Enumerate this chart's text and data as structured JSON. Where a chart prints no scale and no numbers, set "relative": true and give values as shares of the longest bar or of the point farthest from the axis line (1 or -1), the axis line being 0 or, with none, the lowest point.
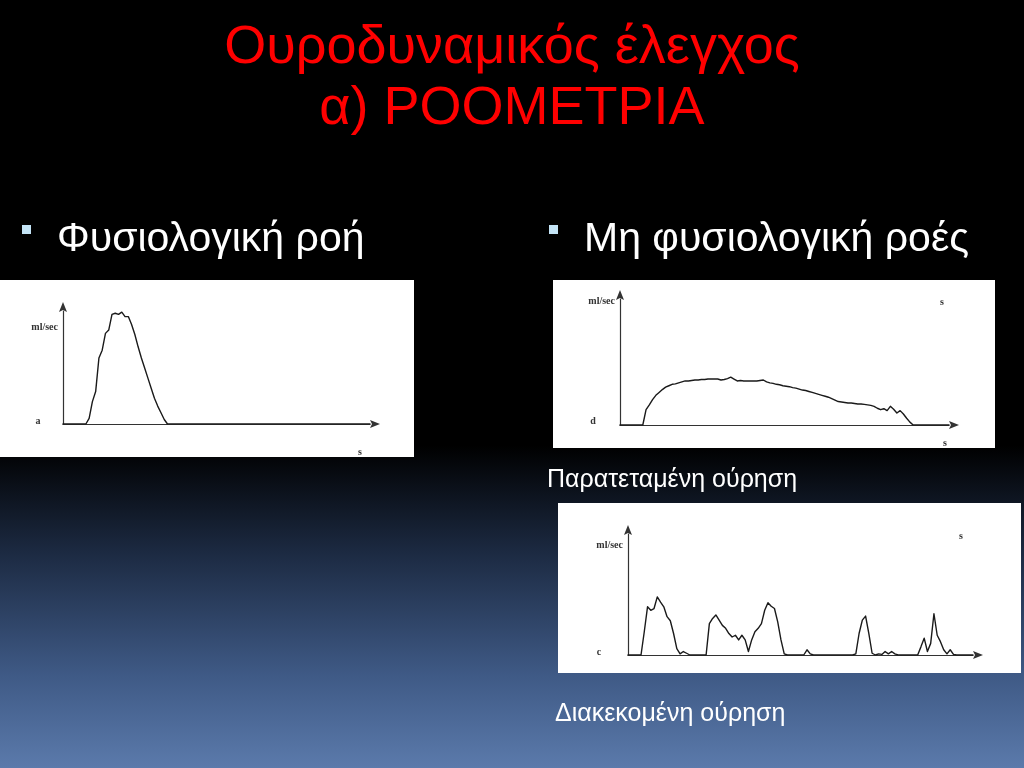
{
  "chart_data": [
    {
      "type": "line",
      "title": "Ουροδυναμικός έλεγχος α) ΡΟΟΜΕΤΡΙΑ",
      "subtitle": "Φυσιολογική ροή",
      "ylabel": "ml/sec",
      "xlabel": "s",
      "annotations": [
        "a"
      ],
      "relative": true,
      "marker": "none",
      "color": "#1a1a1a",
      "categories": [
        null,
        null,
        null,
        null,
        null,
        null,
        null,
        null,
        null,
        null,
        null,
        null,
        null,
        null,
        null,
        null,
        null,
        null,
        null,
        null,
        null,
        null,
        null,
        null,
        null,
        null,
        null,
        null,
        null,
        null,
        null,
        null,
        null,
        null,
        null,
        null,
        null,
        null,
        null,
        null,
        null,
        null,
        null,
        null,
        null,
        null,
        null,
        null,
        null,
        null,
        null,
        null,
        null,
        null,
        null,
        null,
        null,
        null,
        null,
        null,
        null,
        null,
        null,
        null,
        null,
        null,
        null,
        null,
        null,
        null,
        null,
        null,
        null,
        null,
        null,
        null,
        null,
        null,
        null,
        null,
        null,
        null,
        null,
        null,
        null,
        null,
        null,
        null,
        null,
        null,
        null,
        null,
        null,
        null,
        null
      ],
      "values": [
        0,
        0,
        0,
        0,
        0,
        0,
        0,
        0,
        0.05,
        0.2,
        0.29,
        0.59,
        0.66,
        0.81,
        0.84,
        0.98,
        0.99,
        0.98,
        1,
        0.96,
        0.96,
        0.89,
        0.8,
        0.69,
        0.59,
        0.5,
        0.41,
        0.32,
        0.23,
        0.16,
        0.1,
        0.04,
        0,
        0,
        0,
        0,
        0,
        0,
        0,
        0,
        0,
        0,
        0,
        0,
        0,
        0,
        0,
        0,
        0,
        0,
        0,
        0,
        0,
        0,
        0,
        0,
        0,
        0,
        0,
        0,
        0,
        0,
        0,
        0,
        0,
        0,
        0,
        0,
        0,
        0,
        0,
        0,
        0,
        0,
        0,
        0,
        0,
        0,
        0,
        0,
        0,
        0,
        0,
        0,
        0,
        0,
        0,
        0,
        0,
        0,
        0,
        0,
        0,
        0,
        0
      ]
    },
    {
      "type": "line",
      "title": "Μη φυσιολογική ροές",
      "subtitle": "Παρατεταμένη ούρηση",
      "ylabel": "ml/sec",
      "xlabel": "s",
      "annotations": [
        "d",
        "s"
      ],
      "relative": true,
      "marker": "none",
      "color": "#1a1a1a",
      "categories": [
        null,
        null,
        null,
        null,
        null,
        null,
        null,
        null,
        null,
        null,
        null,
        null,
        null,
        null,
        null,
        null,
        null,
        null,
        null,
        null,
        null,
        null,
        null,
        null,
        null,
        null,
        null,
        null,
        null,
        null,
        null,
        null,
        null,
        null,
        null,
        null,
        null,
        null,
        null,
        null,
        null,
        null,
        null,
        null,
        null,
        null,
        null,
        null,
        null,
        null,
        null,
        null,
        null,
        null,
        null,
        null,
        null,
        null,
        null,
        null,
        null,
        null,
        null,
        null,
        null,
        null,
        null,
        null,
        null,
        null,
        null,
        null,
        null,
        null,
        null,
        null,
        null,
        null,
        null,
        null,
        null,
        null,
        null,
        null,
        null,
        null,
        null,
        null,
        null,
        null,
        null,
        null,
        null,
        null,
        null,
        null,
        null,
        null,
        null,
        null,
        null,
        null
      ],
      "values": [
        0,
        0,
        0,
        0,
        0,
        0,
        0,
        0,
        0.32,
        0.42,
        0.53,
        0.62,
        0.68,
        0.74,
        0.79,
        0.82,
        0.85,
        0.86,
        0.88,
        0.9,
        0.92,
        0.92,
        0.93,
        0.94,
        0.94,
        0.95,
        0.95,
        0.96,
        0.96,
        0.96,
        0.96,
        0.94,
        0.95,
        0.97,
        1,
        0.96,
        0.92,
        0.93,
        0.92,
        0.92,
        0.92,
        0.92,
        0.92,
        0.93,
        0.94,
        0.9,
        0.88,
        0.87,
        0.85,
        0.84,
        0.82,
        0.81,
        0.8,
        0.78,
        0.77,
        0.75,
        0.73,
        0.72,
        0.7,
        0.68,
        0.66,
        0.64,
        0.62,
        0.6,
        0.58,
        0.55,
        0.52,
        0.49,
        0.48,
        0.47,
        0.46,
        0.46,
        0.45,
        0.44,
        0.44,
        0.43,
        0.42,
        0.41,
        0.39,
        0.35,
        0.32,
        0.34,
        0.3,
        0.39,
        0.33,
        0.25,
        0.3,
        0.23,
        0.14,
        0.06,
        0,
        0,
        0,
        0,
        0,
        0,
        0,
        0,
        0,
        0,
        0,
        0
      ]
    },
    {
      "type": "line",
      "subtitle": "Διακεκομένη ούρηση",
      "ylabel": "ml/sec",
      "annotations": [
        "c",
        "s"
      ],
      "relative": true,
      "marker": "none",
      "color": "#1a1a1a",
      "categories": [
        null,
        null,
        null,
        null,
        null,
        null,
        null,
        null,
        null,
        null,
        null,
        null,
        null,
        null,
        null,
        null,
        null,
        null,
        null,
        null,
        null,
        null,
        null,
        null,
        null,
        null,
        null,
        null,
        null,
        null,
        null,
        null,
        null,
        null,
        null,
        null,
        null,
        null,
        null,
        null,
        null,
        null,
        null,
        null,
        null,
        null,
        null,
        null,
        null,
        null,
        null,
        null,
        null,
        null,
        null,
        null,
        null,
        null,
        null,
        null,
        null,
        null,
        null,
        null,
        null,
        null,
        null,
        null,
        null,
        null,
        null,
        null,
        null,
        null,
        null,
        null,
        null,
        null,
        null,
        null,
        null,
        null,
        null,
        null,
        null,
        null,
        null,
        null,
        null,
        null,
        null,
        null,
        null,
        null,
        null,
        null,
        null,
        null,
        null,
        null,
        null,
        null,
        null,
        null,
        null,
        null,
        null
      ],
      "values": [
        0,
        0,
        0,
        0,
        0,
        0.4,
        0.83,
        0.77,
        0.8,
        1,
        0.91,
        0.83,
        0.66,
        0.59,
        0.37,
        0.11,
        0.02,
        0.06,
        0.03,
        0,
        0,
        0,
        0,
        0,
        0,
        0.54,
        0.63,
        0.69,
        0.6,
        0.51,
        0.46,
        0.37,
        0.31,
        0.34,
        0.26,
        0.34,
        0.26,
        0.06,
        0.26,
        0.4,
        0.46,
        0.54,
        0.77,
        0.9,
        0.84,
        0.8,
        0.57,
        0.26,
        0.02,
        0,
        0,
        0,
        0,
        0,
        0,
        0.09,
        0.02,
        0,
        0,
        0,
        0,
        0,
        0,
        0,
        0,
        0,
        0,
        0,
        0,
        0,
        0.02,
        0.37,
        0.6,
        0.67,
        0.37,
        0.03,
        0,
        0.02,
        0.01,
        0.06,
        0.02,
        0.06,
        0.02,
        0,
        0,
        0,
        0,
        0,
        0,
        0,
        0.14,
        0.29,
        0.06,
        0.2,
        0.71,
        0.34,
        0.23,
        0.09,
        0.02,
        0.09,
        0.01,
        0,
        0,
        0,
        0,
        0,
        0
      ]
    }
  ]
}
